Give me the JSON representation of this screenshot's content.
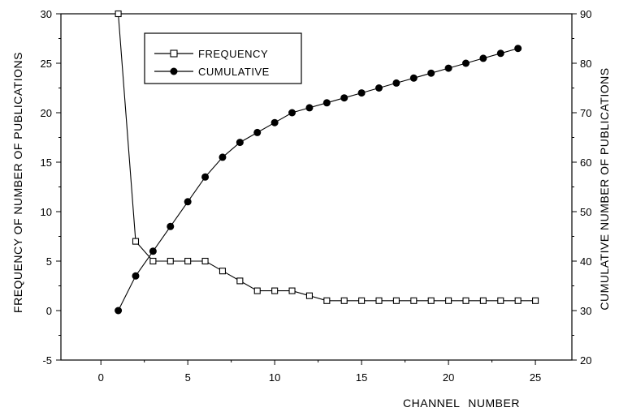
{
  "chart_data": {
    "type": "line",
    "title": "",
    "xlabel": "CHANNEL NUMBER",
    "ylabel_left": "FREQUENCY OF NUMBER OF PUBLICATIONS",
    "ylabel_right": "CUMULATIVE NUMBER OF PUBLICATIONS",
    "xlim": [
      -2.3,
      27.1
    ],
    "ylim_left": [
      -5,
      30
    ],
    "ylim_right": [
      20,
      90
    ],
    "x_ticks": [
      0,
      5,
      10,
      15,
      20,
      25
    ],
    "y_ticks_left": [
      -5,
      0,
      5,
      10,
      15,
      20,
      25,
      30
    ],
    "y_ticks_right": [
      20,
      30,
      40,
      50,
      60,
      70,
      80,
      90
    ],
    "grid": false,
    "legend_position": "top-left",
    "series": [
      {
        "name": "FREQUENCY",
        "axis": "left",
        "marker": "open-square",
        "x": [
          1,
          2,
          3,
          4,
          5,
          6,
          7,
          8,
          9,
          10,
          11,
          12,
          13,
          14,
          15,
          16,
          17,
          18,
          19,
          20,
          21,
          22,
          23,
          24,
          25
        ],
        "values": [
          30,
          7,
          5,
          5,
          5,
          5,
          4,
          3,
          2,
          2,
          2,
          1.5,
          1,
          1,
          1,
          1,
          1,
          1,
          1,
          1,
          1,
          1,
          1,
          1,
          1
        ]
      },
      {
        "name": "CUMULATIVE",
        "axis": "right",
        "marker": "filled-circle",
        "x": [
          1,
          2,
          3,
          4,
          5,
          6,
          7,
          8,
          9,
          10,
          11,
          12,
          13,
          14,
          15,
          16,
          17,
          18,
          19,
          20,
          21,
          22,
          23,
          24
        ],
        "values": [
          30,
          37,
          42,
          47,
          52,
          57,
          61,
          64,
          66,
          68,
          70,
          71,
          72,
          73,
          74,
          75,
          76,
          77,
          78,
          79,
          80,
          81,
          82,
          83
        ]
      }
    ]
  }
}
